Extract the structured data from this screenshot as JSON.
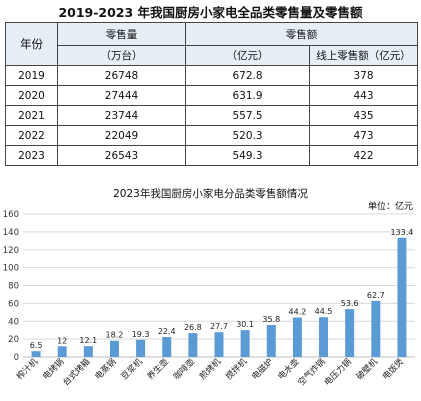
{
  "table": {
    "title": "2019-2023 年我国厨房小家电全品类零售量及零售额",
    "headers": {
      "year": "年份",
      "volume": "零售量",
      "volume_unit": "（万台）",
      "sales": "零售额",
      "sales_unit": "（亿元）",
      "online": "线上零售额（亿元）"
    },
    "rows": [
      [
        "2019",
        "26748",
        "672.8",
        "378"
      ],
      [
        "2020",
        "27444",
        "631.9",
        "443"
      ],
      [
        "2021",
        "23744",
        "557.5",
        "435"
      ],
      [
        "2022",
        "22049",
        "520.3",
        "473"
      ],
      [
        "2023",
        "26543",
        "549.3",
        "422"
      ]
    ]
  },
  "chart_data": [
    {
      "type": "table",
      "title": "2019-2023 年我国厨房小家电全品类零售量及零售额",
      "columns": [
        "年份",
        "零售量（万台）",
        "零售额（亿元）",
        "线上零售额（亿元）"
      ],
      "rows": [
        [
          2019,
          26748,
          672.8,
          378
        ],
        [
          2020,
          27444,
          631.9,
          443
        ],
        [
          2021,
          23744,
          557.5,
          435
        ],
        [
          2022,
          22049,
          520.3,
          473
        ],
        [
          2023,
          26543,
          549.3,
          422
        ]
      ]
    },
    {
      "type": "bar",
      "title": "2023年我国厨房小家电分品类零售额情况",
      "unit_label": "单位：亿元",
      "categories": [
        "榨汁机",
        "电烤锅",
        "台式烤箱",
        "电蒸锅",
        "豆浆机",
        "养生壶",
        "咖啡壶",
        "煎烤机",
        "搅拌机",
        "电磁炉",
        "电水壶",
        "空气炸锅",
        "电压力锅",
        "破壁机",
        "电饭煲"
      ],
      "values": [
        6.5,
        12,
        12.1,
        18.2,
        19.3,
        22.4,
        26.8,
        27.7,
        30.1,
        35.8,
        44.2,
        44.5,
        53.6,
        62.7,
        133.4
      ],
      "ylim": [
        0,
        160
      ],
      "yticks": [
        0,
        20,
        40,
        60,
        80,
        100,
        120,
        140,
        160
      ],
      "xlabel": "",
      "ylabel": "",
      "grid": true,
      "bar_color": "#5b9bd5"
    }
  ]
}
